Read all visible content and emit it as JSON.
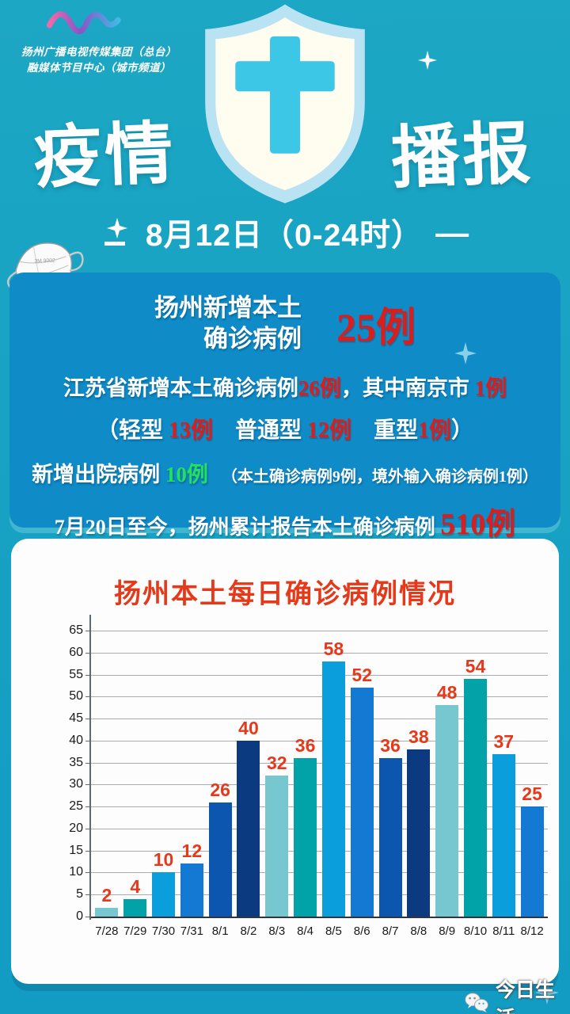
{
  "colors": {
    "background": "#17a2c3",
    "panel_blue": "#0f8bc7",
    "card_white": "#fdfdfd",
    "stat_red": "#d91e1e",
    "stat_green": "#25e05f",
    "chart_red": "#e5391a",
    "cross_cyan": "#3cc7e6"
  },
  "header": {
    "logo_line1": "扬州广播电视传媒集团（总台）",
    "logo_line2": "融媒体节目中心（城市频道）",
    "title_left": "疫情",
    "title_right": "播报",
    "date_line": "8月12日（0-24时）",
    "date_dash": "—"
  },
  "summary": {
    "main_label_line1": "扬州新增本土",
    "main_label_line2": "确诊病例",
    "main_value": "25例",
    "jiangsu": [
      {
        "text": "江苏省新增本土确诊病例",
        "color": "white"
      },
      {
        "text": "26例",
        "color": "red"
      },
      {
        "text": "，其中南京市 ",
        "color": "white"
      },
      {
        "text": "1例",
        "color": "red"
      }
    ],
    "types": [
      {
        "text": "（轻型 ",
        "color": "white"
      },
      {
        "text": "13例",
        "color": "red"
      },
      {
        "text": "　普通型 ",
        "color": "white"
      },
      {
        "text": "12例",
        "color": "red"
      },
      {
        "text": "　重型",
        "color": "white"
      },
      {
        "text": "1例",
        "color": "red"
      },
      {
        "text": "）",
        "color": "white"
      }
    ],
    "discharge": [
      {
        "text": "新增出院病例 ",
        "color": "white"
      },
      {
        "text": "10例",
        "color": "green"
      },
      {
        "text": "　",
        "color": "white"
      },
      {
        "text": "（本土确诊病例9例，境外输入确诊病例1例）",
        "color": "white",
        "size": "small"
      }
    ],
    "cumulative": [
      {
        "text": "7月20日至今，扬州累计报告本土确诊病例 ",
        "color": "white"
      },
      {
        "text": "510例",
        "color": "red",
        "size": "big"
      }
    ]
  },
  "chart_data": {
    "type": "bar",
    "title": "扬州本土每日确诊病例情况",
    "categories": [
      "7/28",
      "7/29",
      "7/30",
      "7/31",
      "8/1",
      "8/2",
      "8/3",
      "8/4",
      "8/5",
      "8/6",
      "8/7",
      "8/8",
      "8/9",
      "8/10",
      "8/11",
      "8/12"
    ],
    "values": [
      2,
      4,
      10,
      12,
      26,
      40,
      32,
      36,
      58,
      52,
      36,
      38,
      48,
      54,
      37,
      25
    ],
    "xlabel": "",
    "ylabel": "",
    "ylim": [
      0,
      65
    ],
    "ytick_step": 5,
    "yticks": [
      0,
      5,
      10,
      15,
      20,
      25,
      30,
      35,
      40,
      45,
      50,
      55,
      60,
      65
    ],
    "grid": true,
    "legend": false,
    "show_value_labels": true,
    "value_label_color": "#e5391a",
    "bar_colors_cycle": [
      "#76c7cf",
      "#01a3a9",
      "#0a9edd",
      "#1379d3",
      "#0d56af",
      "#0b3a80"
    ]
  },
  "watermark": {
    "label": "今日生活"
  }
}
